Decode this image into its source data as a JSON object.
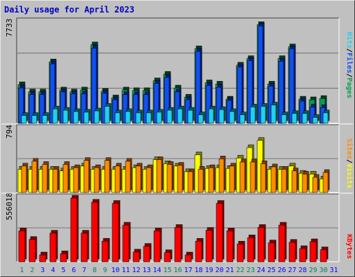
{
  "colors": {
    "background": "#c0c0c0",
    "hits_front": "#00a050",
    "hits_back": "#004020",
    "files_front": "#1050f0",
    "files_back": "#002080",
    "pages_front": "#20d0f0",
    "pages_back": "#006070",
    "visits_front": "#ffff00",
    "visits_back": "#808000",
    "sites_front": "#ff8c00",
    "sites_back": "#804000",
    "kbytes_front": "#ff0000",
    "kbytes_back": "#800000",
    "day_weekend": "#00805c",
    "day_weekday": "#0000ff",
    "title": "#0000c0",
    "divider": "#ffffff",
    "gridline": "#606060"
  },
  "chart_data": [
    {
      "type": "bar",
      "title": "Daily usage for April 2023",
      "categories": [
        "1",
        "2",
        "3",
        "4",
        "5",
        "6",
        "7",
        "8",
        "9",
        "10",
        "11",
        "12",
        "13",
        "14",
        "15",
        "16",
        "17",
        "18",
        "19",
        "20",
        "21",
        "22",
        "23",
        "24",
        "25",
        "26",
        "27",
        "28",
        "29",
        "30",
        "31"
      ],
      "weekend_days": [
        "1",
        "2",
        "8",
        "9",
        "15",
        "16",
        "22",
        "23",
        "29",
        "30"
      ],
      "ymax_label": "7733",
      "ylim": [
        0,
        7733
      ],
      "series_labels": [
        "Pages",
        "Files",
        "Hits"
      ],
      "series": [
        {
          "name": "Hits",
          "values": [
            2950,
            2400,
            2400,
            4700,
            2550,
            2400,
            2550,
            6000,
            2450,
            1950,
            2550,
            2500,
            2500,
            3250,
            3750,
            2700,
            2000,
            5700,
            3100,
            3000,
            1850,
            4450,
            4950,
            7550,
            3000,
            4950,
            5850,
            1850,
            1800,
            1900,
            0
          ]
        },
        {
          "name": "Files",
          "values": [
            2700,
            2200,
            2200,
            4550,
            2400,
            2250,
            2250,
            5750,
            2300,
            1800,
            2200,
            2200,
            2200,
            3050,
            3500,
            2400,
            1800,
            5500,
            2900,
            2750,
            1750,
            4300,
            4800,
            7450,
            2850,
            4750,
            5700,
            1700,
            1250,
            1200,
            0
          ]
        },
        {
          "name": "Pages",
          "values": [
            600,
            600,
            600,
            1100,
            1000,
            900,
            850,
            950,
            1300,
            800,
            900,
            800,
            800,
            850,
            1000,
            1100,
            1000,
            650,
            1100,
            1050,
            900,
            650,
            1250,
            1300,
            1400,
            650,
            750,
            750,
            450,
            800,
            0
          ]
        }
      ]
    },
    {
      "type": "bar",
      "ymax_label": "794",
      "ylim": [
        0,
        794
      ],
      "series_labels": [
        "Sites",
        "Visits"
      ],
      "series": [
        {
          "name": "Visits",
          "values": [
            290,
            290,
            290,
            290,
            270,
            290,
            330,
            290,
            290,
            290,
            290,
            310,
            290,
            410,
            360,
            330,
            260,
            470,
            300,
            310,
            300,
            430,
            560,
            650,
            290,
            290,
            330,
            240,
            230,
            170,
            0
          ]
        },
        {
          "name": "Sites",
          "values": [
            330,
            390,
            350,
            290,
            350,
            310,
            400,
            310,
            400,
            330,
            390,
            330,
            310,
            410,
            350,
            340,
            260,
            290,
            310,
            420,
            330,
            380,
            380,
            360,
            320,
            290,
            270,
            230,
            190,
            250,
            0
          ]
        }
      ]
    },
    {
      "type": "bar",
      "ymax_label": "556018",
      "ylim": [
        0,
        556018
      ],
      "series_labels": [
        "KBytes"
      ],
      "series": [
        {
          "name": "KBytes",
          "values": [
            270000,
            195000,
            60000,
            250000,
            70000,
            556018,
            250000,
            520000,
            180000,
            510000,
            320000,
            85000,
            135000,
            270000,
            80000,
            300000,
            60000,
            180000,
            275000,
            510000,
            270000,
            155000,
            210000,
            300000,
            165000,
            320000,
            170000,
            115000,
            175000,
            105000,
            0
          ]
        }
      ]
    }
  ]
}
